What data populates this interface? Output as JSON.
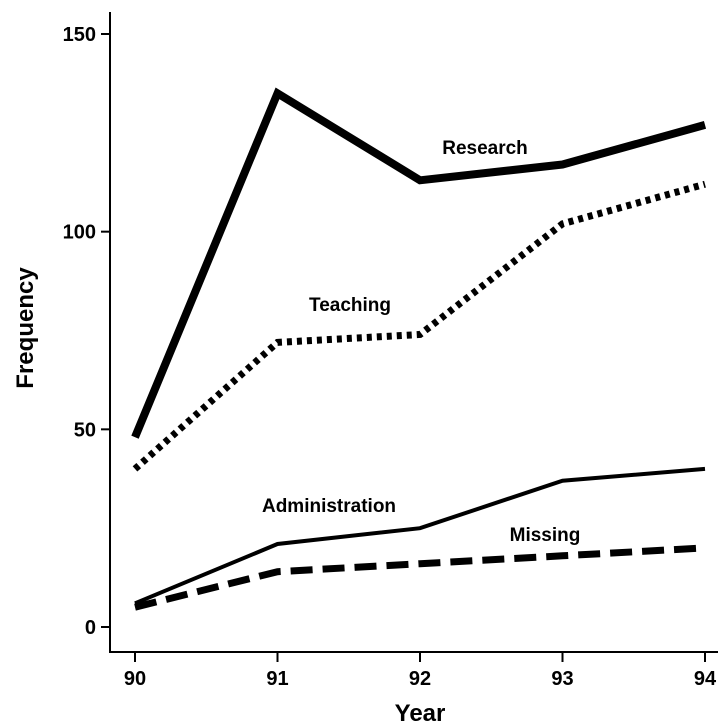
{
  "chart_data": {
    "type": "line",
    "title": "",
    "xlabel": "Year",
    "ylabel": "Frequency",
    "x": [
      "90",
      "91",
      "92",
      "93",
      "94"
    ],
    "xlim": [
      "90",
      "94"
    ],
    "ylim": [
      0,
      150
    ],
    "yticks": [
      0,
      50,
      100,
      150
    ],
    "grid": false,
    "legend": "none",
    "series": [
      {
        "name": "Research",
        "style": "solid-thick",
        "color": "#000000",
        "values": [
          48,
          135,
          113,
          117,
          127
        ]
      },
      {
        "name": "Teaching",
        "style": "dotted",
        "color": "#000000",
        "values": [
          40,
          72,
          74,
          102,
          112
        ]
      },
      {
        "name": "Administration",
        "style": "solid-thin",
        "color": "#000000",
        "values": [
          6,
          21,
          25,
          37,
          40
        ]
      },
      {
        "name": "Missing",
        "style": "dashed",
        "color": "#000000",
        "values": [
          5,
          14,
          16,
          18,
          20
        ]
      }
    ]
  }
}
